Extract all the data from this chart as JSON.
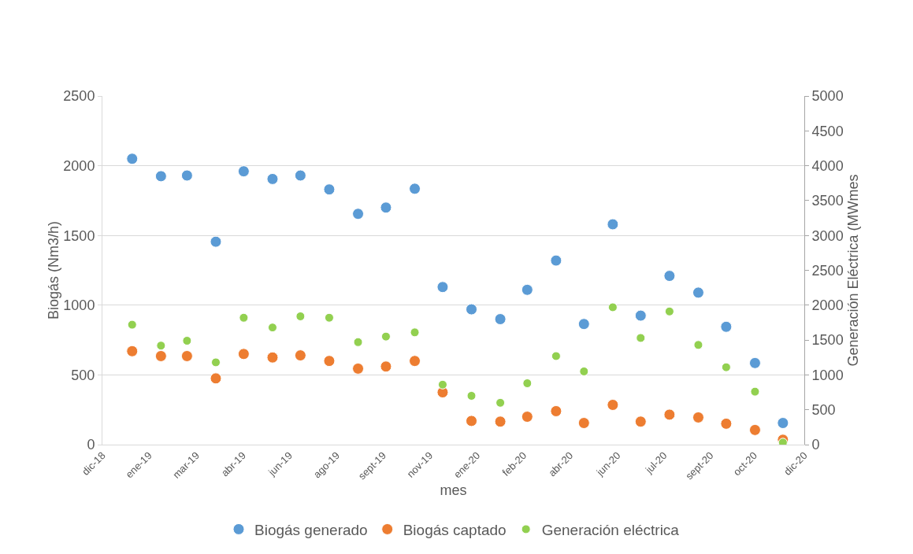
{
  "chart_data": {
    "type": "scatter",
    "xlabel": "mes",
    "ylabel": "Biogás (Nm3/h)",
    "y2label": "Generación Eléctrica (MWmes",
    "x": [
      "2019-01",
      "2019-02",
      "2019-03",
      "2019-04",
      "2019-05",
      "2019-06",
      "2019-07",
      "2019-08",
      "2019-09",
      "2019-10",
      "2019-11",
      "2019-12",
      "2020-01",
      "2020-02",
      "2020-03",
      "2020-04",
      "2020-05",
      "2020-06",
      "2020-07",
      "2020-08",
      "2020-09",
      "2020-10",
      "2020-11",
      "2020-12"
    ],
    "series": [
      {
        "name": "Biogás generado",
        "color": "#5b9bd5",
        "values": [
          2050,
          1925,
          1930,
          1455,
          1960,
          1905,
          1930,
          1830,
          1655,
          1700,
          1835,
          1130,
          970,
          900,
          1110,
          1320,
          865,
          1580,
          925,
          1210,
          1090,
          845,
          585,
          155
        ]
      },
      {
        "name": "Biogás captado",
        "color": "#ed7d31",
        "values": [
          670,
          635,
          635,
          475,
          650,
          625,
          640,
          600,
          545,
          560,
          600,
          375,
          170,
          165,
          200,
          240,
          155,
          285,
          165,
          215,
          195,
          150,
          105,
          35
        ]
      },
      {
        "name": "Generación eléctrica",
        "color": "#92d050",
        "axis": "y2",
        "values": [
          1720,
          1420,
          1490,
          1180,
          1820,
          1680,
          1840,
          1820,
          1470,
          1550,
          1610,
          860,
          700,
          600,
          880,
          1270,
          1050,
          1970,
          1530,
          1910,
          1430,
          1110,
          760,
          30
        ]
      }
    ],
    "xlim": [
      "2018-11-30",
      "2020-12-24"
    ],
    "xticks": [
      {
        "value": "2018-11-30",
        "label": "dic-18"
      },
      {
        "value": "2019-01-19",
        "label": "ene-19"
      },
      {
        "value": "2019-03-11",
        "label": "mar-19"
      },
      {
        "value": "2019-04-30",
        "label": "abr-19"
      },
      {
        "value": "2019-06-19",
        "label": "jun-19"
      },
      {
        "value": "2019-08-09",
        "label": "ago-19"
      },
      {
        "value": "2019-09-28",
        "label": "sept-19"
      },
      {
        "value": "2019-11-17",
        "label": "nov-19"
      },
      {
        "value": "2020-01-07",
        "label": "ene-20"
      },
      {
        "value": "2020-02-26",
        "label": "feb-20"
      },
      {
        "value": "2020-04-16",
        "label": "abr-20"
      },
      {
        "value": "2020-06-06",
        "label": "jun-20"
      },
      {
        "value": "2020-07-26",
        "label": "jul-20"
      },
      {
        "value": "2020-09-14",
        "label": "sept-20"
      },
      {
        "value": "2020-10-31",
        "label": "oct-20"
      },
      {
        "value": "2020-12-24",
        "label": "dic-20"
      }
    ],
    "ylim": [
      0,
      2500
    ],
    "yticks": [
      0,
      500,
      1000,
      1500,
      2000,
      2500
    ],
    "y2lim": [
      0,
      5000
    ],
    "y2ticks": [
      0,
      500,
      1000,
      1500,
      2000,
      2500,
      3000,
      3500,
      4000,
      4500,
      5000
    ],
    "grid": "y",
    "legend": "bottom",
    "marker": "circle"
  }
}
